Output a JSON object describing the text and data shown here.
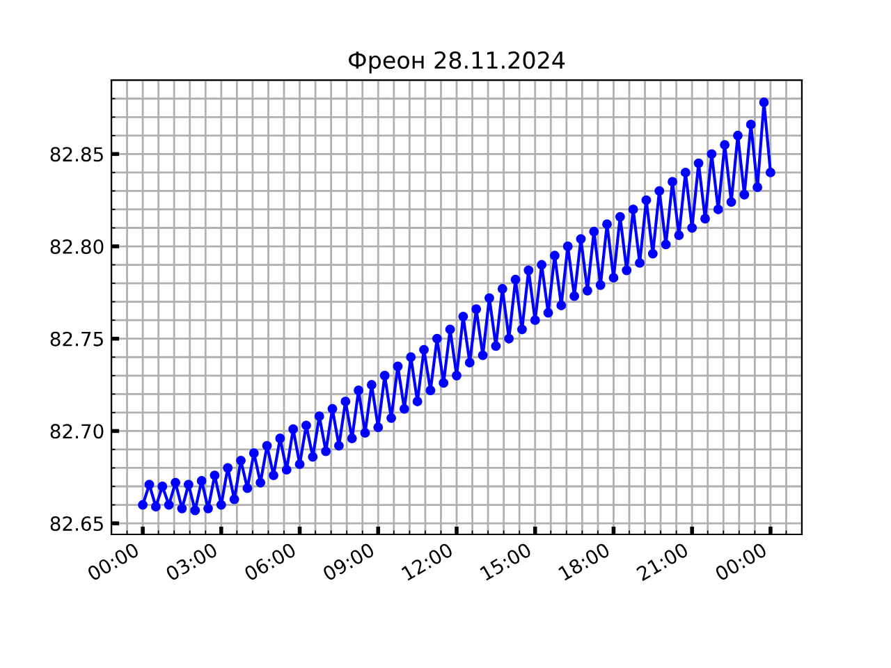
{
  "chart_data": {
    "type": "line",
    "title": "Фреон 28.11.2024",
    "x": [
      0,
      0.25,
      0.5,
      0.75,
      1,
      1.25,
      1.5,
      1.75,
      2,
      2.25,
      2.5,
      2.75,
      3,
      3.25,
      3.5,
      3.75,
      4,
      4.25,
      4.5,
      4.75,
      5,
      5.25,
      5.5,
      5.75,
      6,
      6.25,
      6.5,
      6.75,
      7,
      7.25,
      7.5,
      7.75,
      8,
      8.25,
      8.5,
      8.75,
      9,
      9.25,
      9.5,
      9.75,
      10,
      10.25,
      10.5,
      10.75,
      11,
      11.25,
      11.5,
      11.75,
      12,
      12.25,
      12.5,
      12.75,
      13,
      13.25,
      13.5,
      13.75,
      14,
      14.25,
      14.5,
      14.75,
      15,
      15.25,
      15.5,
      15.75,
      16,
      16.25,
      16.5,
      16.75,
      17,
      17.25,
      17.5,
      17.75,
      18,
      18.25,
      18.5,
      18.75,
      19,
      19.25,
      19.5,
      19.75,
      20,
      20.25,
      20.5,
      20.75,
      21,
      21.25,
      21.5,
      21.75,
      22,
      22.25,
      22.5,
      22.75,
      23,
      23.25,
      23.5,
      23.75,
      24
    ],
    "series": [
      {
        "color": "#0000ff",
        "values": [
          82.66,
          82.671,
          82.659,
          82.67,
          82.66,
          82.672,
          82.658,
          82.671,
          82.657,
          82.673,
          82.658,
          82.676,
          82.66,
          82.68,
          82.663,
          82.684,
          82.669,
          82.688,
          82.672,
          82.692,
          82.676,
          82.696,
          82.679,
          82.701,
          82.682,
          82.703,
          82.686,
          82.708,
          82.689,
          82.712,
          82.692,
          82.716,
          82.696,
          82.722,
          82.699,
          82.725,
          82.702,
          82.73,
          82.707,
          82.735,
          82.712,
          82.74,
          82.716,
          82.744,
          82.722,
          82.75,
          82.726,
          82.755,
          82.73,
          82.762,
          82.737,
          82.766,
          82.741,
          82.772,
          82.746,
          82.777,
          82.75,
          82.782,
          82.755,
          82.787,
          82.76,
          82.79,
          82.764,
          82.795,
          82.768,
          82.8,
          82.773,
          82.804,
          82.776,
          82.808,
          82.779,
          82.812,
          82.783,
          82.816,
          82.787,
          82.82,
          82.791,
          82.825,
          82.796,
          82.83,
          82.801,
          82.835,
          82.806,
          82.84,
          82.81,
          82.845,
          82.815,
          82.85,
          82.82,
          82.855,
          82.824,
          82.86,
          82.828,
          82.866,
          82.832,
          82.878,
          82.84
        ]
      }
    ],
    "xlim": [
      -1.2,
      25.2
    ],
    "xticks": [
      {
        "value": 0,
        "label": "00:00"
      },
      {
        "value": 3,
        "label": "03:00"
      },
      {
        "value": 6,
        "label": "06:00"
      },
      {
        "value": 9,
        "label": "09:00"
      },
      {
        "value": 12,
        "label": "12:00"
      },
      {
        "value": 15,
        "label": "15:00"
      },
      {
        "value": 18,
        "label": "18:00"
      },
      {
        "value": 21,
        "label": "21:00"
      },
      {
        "value": 24,
        "label": "00:00"
      }
    ],
    "ylim": [
      82.644,
      82.89
    ],
    "yticks": [
      {
        "value": 82.65,
        "label": "82.65"
      },
      {
        "value": 82.7,
        "label": "82.70"
      },
      {
        "value": 82.75,
        "label": "82.75"
      },
      {
        "value": 82.8,
        "label": "82.80"
      },
      {
        "value": 82.85,
        "label": "82.85"
      }
    ],
    "grid": true,
    "marker": "circle",
    "line_style": "solid"
  }
}
